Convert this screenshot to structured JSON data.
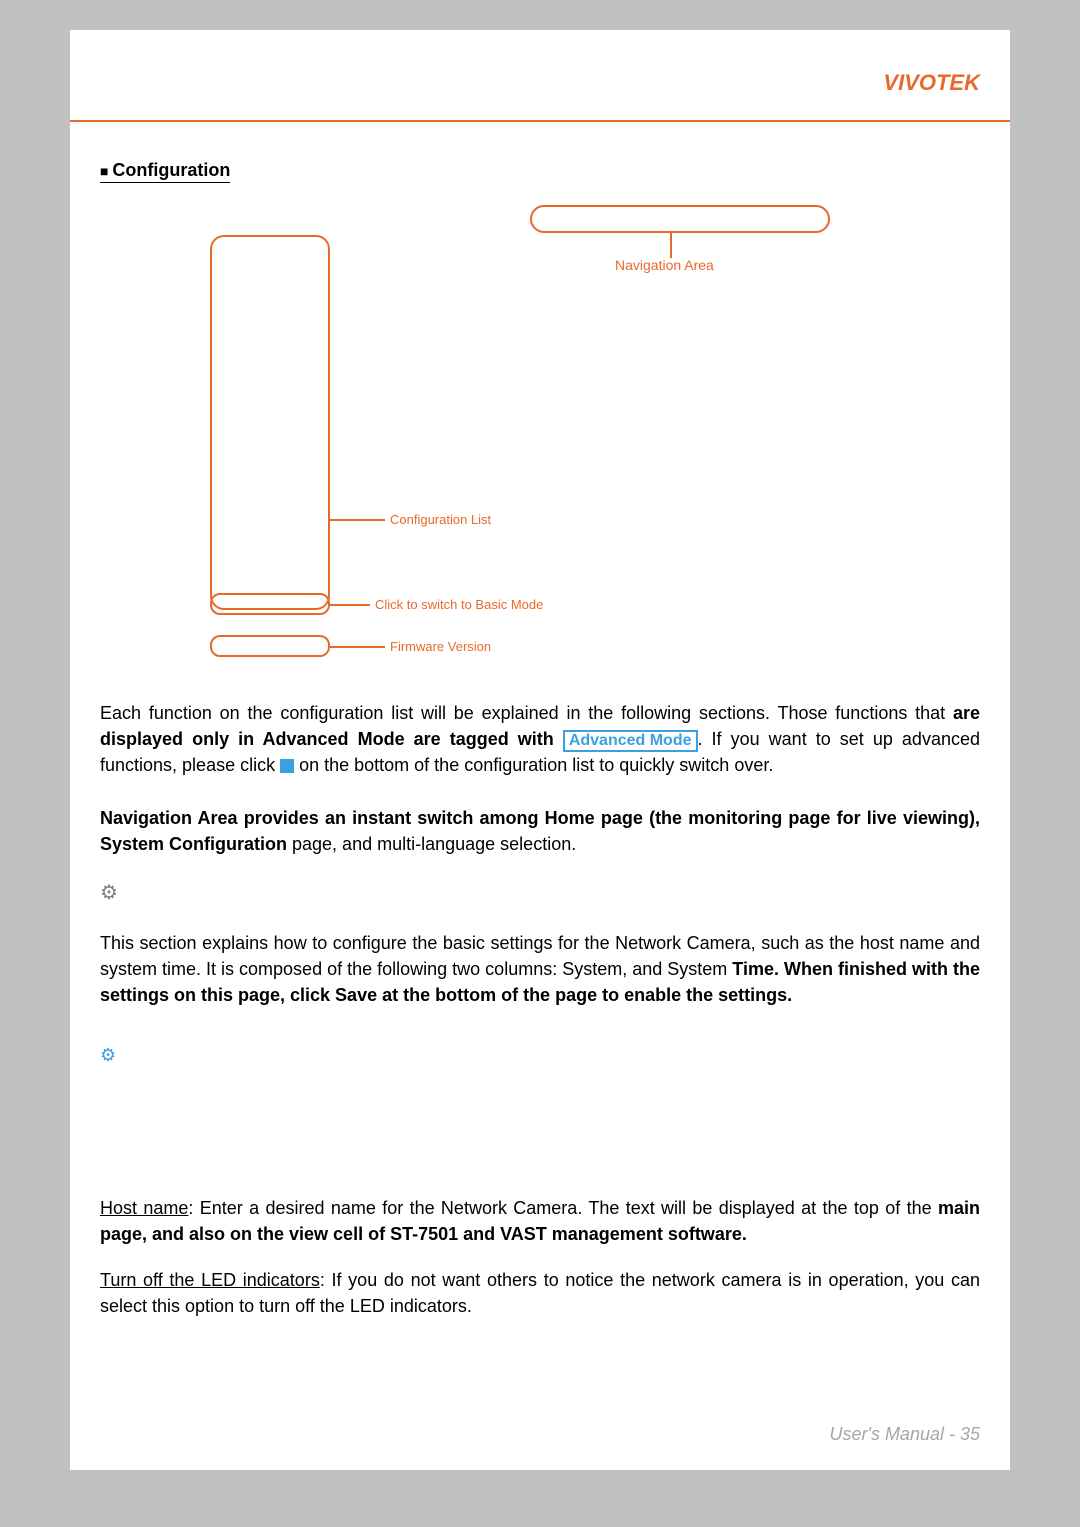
{
  "header": {
    "brand": "VIVOTEK"
  },
  "section_title": "Configuration",
  "diagram": {
    "nav_label": "Navigation Area",
    "config_label": "Configuration List",
    "basic_label": "Click to switch to Basic Mode",
    "fw_label": "Firmware Version",
    "colors": {
      "outline": "#e86a2a",
      "text": "#e86a2a"
    }
  },
  "paragraphs": {
    "p1a": "Each function on the configuration list will be explained in the following sections. Those functions that ",
    "p1b": "are displayed only in Advanced Mode are tagged with",
    "adv_mode": "Advanced Mode",
    "p1c": ". If you want to set up advanced functions, please click ",
    "p1d": " on the bottom of the configuration list to quickly switch over.",
    "p2a": "Navigation Area provides an instant switch among Home page (the monitoring page for live viewing), ",
    "p2b": "System Configuration",
    "p2c": " page, and multi-language selection.",
    "p3a": "This section explains how to configure the basic settings for the Network Camera, such as the host name and system time. It is composed of the following two columns: System, and System ",
    "p3b": "Time. When finished with the settings on this page, click Save at the bottom of the page to enable the settings.",
    "p4_label": "Host name",
    "p4a": ": Enter a desired name for the Network Camera. The text will be displayed at the top of the ",
    "p4b": "main page, and also on the view cell of ST-7501 and VAST management software.",
    "p5_label": "Turn off the LED indicators",
    "p5a": ": If you do not want others to notice the network camera is in operation, you can select this option to turn off the LED indicators."
  },
  "icons": {
    "gray": "System",
    "blue": "System"
  },
  "footer": {
    "text": "User's Manual - 35"
  }
}
